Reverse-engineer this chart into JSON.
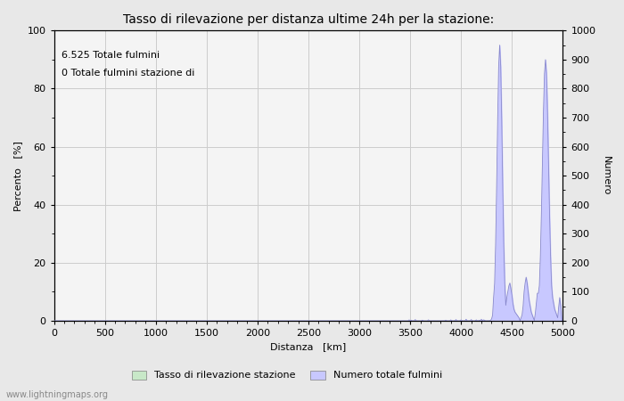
{
  "title": "Tasso di rilevazione per distanza ultime 24h per la stazione:",
  "xlabel": "Distanza   [km]",
  "ylabel_left": "Percento   [%]",
  "ylabel_right": "Numero",
  "annotation_line1": "6.525 Totale fulmini",
  "annotation_line2": "0 Totale fulmini stazione di",
  "xlim": [
    0,
    5000
  ],
  "ylim_left": [
    0,
    100
  ],
  "ylim_right": [
    0,
    1000
  ],
  "xticks": [
    0,
    500,
    1000,
    1500,
    2000,
    2500,
    3000,
    3500,
    4000,
    4500,
    5000
  ],
  "yticks_left": [
    0,
    20,
    40,
    60,
    80,
    100
  ],
  "yticks_right": [
    0,
    100,
    200,
    300,
    400,
    500,
    600,
    700,
    800,
    900,
    1000
  ],
  "legend_label_green": "Tasso di rilevazione stazione",
  "legend_label_blue": "Numero totale fulmini",
  "fill_color_blue": "#c8c8ff",
  "line_color_blue": "#8888cc",
  "fill_color_green": "#c8e8c8",
  "line_color_green": "#88bb88",
  "grid_color": "#cccccc",
  "background_color": "#e8e8e8",
  "plot_bg_color": "#f4f4f4",
  "watermark": "www.lightningmaps.org",
  "title_fontsize": 10,
  "axis_fontsize": 8,
  "tick_fontsize": 8,
  "legend_fontsize": 8,
  "annotation_fontsize": 8
}
